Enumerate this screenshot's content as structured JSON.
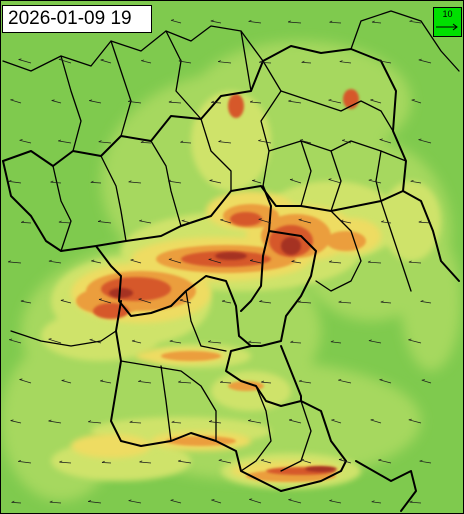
{
  "map": {
    "timestamp": "2026-01-09 19",
    "legend": {
      "reference_vector_value": "10"
    },
    "colors": {
      "background_green": "#7fca4e",
      "light_green": "#a6d85e",
      "yellow_green": "#cfe36a",
      "yellow": "#eedc62",
      "orange": "#eb9e3e",
      "red": "#d6582b",
      "dark_red": "#a53020",
      "border": "#000000",
      "legend_green": "#00e000"
    }
  }
}
